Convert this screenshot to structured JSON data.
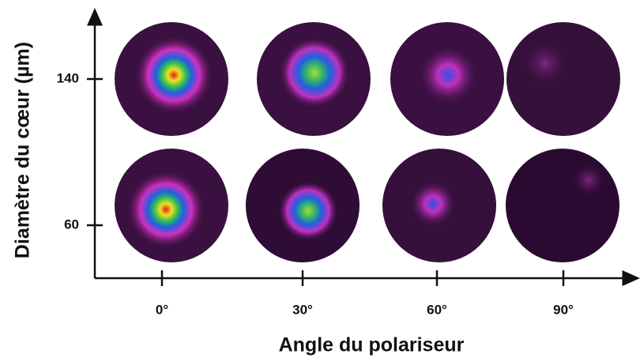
{
  "chart_data": {
    "type": "image-grid",
    "xlabel": "Angle du polariseur",
    "ylabel": "Diamètre du cœur (µm)",
    "categories": [
      "0°",
      "30°",
      "60°",
      "90°"
    ],
    "rows": [
      "140",
      "60"
    ]
  }
}
